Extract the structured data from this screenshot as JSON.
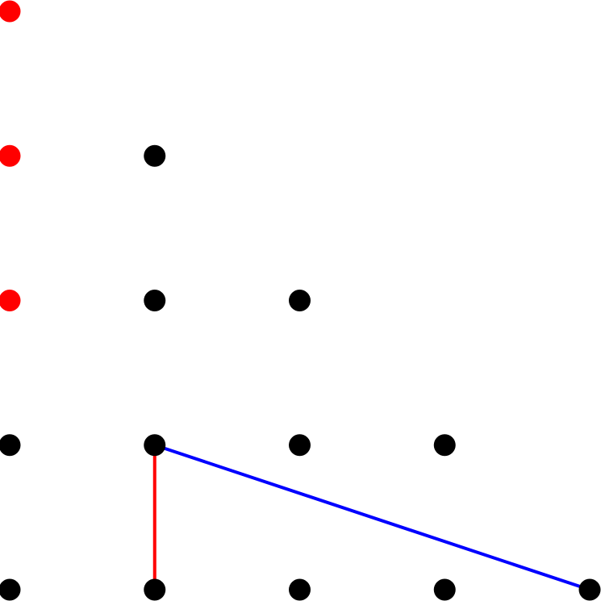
{
  "rows": [
    [
      "#ff0000"
    ],
    [
      "#ff0000",
      "#000000"
    ],
    [
      "#ff0000",
      "#000000",
      "#000000"
    ],
    [
      "#000000",
      "#000000",
      "#000000",
      "#000000"
    ],
    [
      "#000000",
      "#000000",
      "#000000",
      "#000000",
      "#000000"
    ]
  ],
  "lines": [
    {
      "color": "#ff0000",
      "from": {
        "row": 3,
        "col": 1
      },
      "to": {
        "row": 4,
        "col": 1
      }
    },
    {
      "color": "#0000ff",
      "from": {
        "row": 3,
        "col": 1
      },
      "to": {
        "row": 4,
        "col": 4
      }
    }
  ]
}
